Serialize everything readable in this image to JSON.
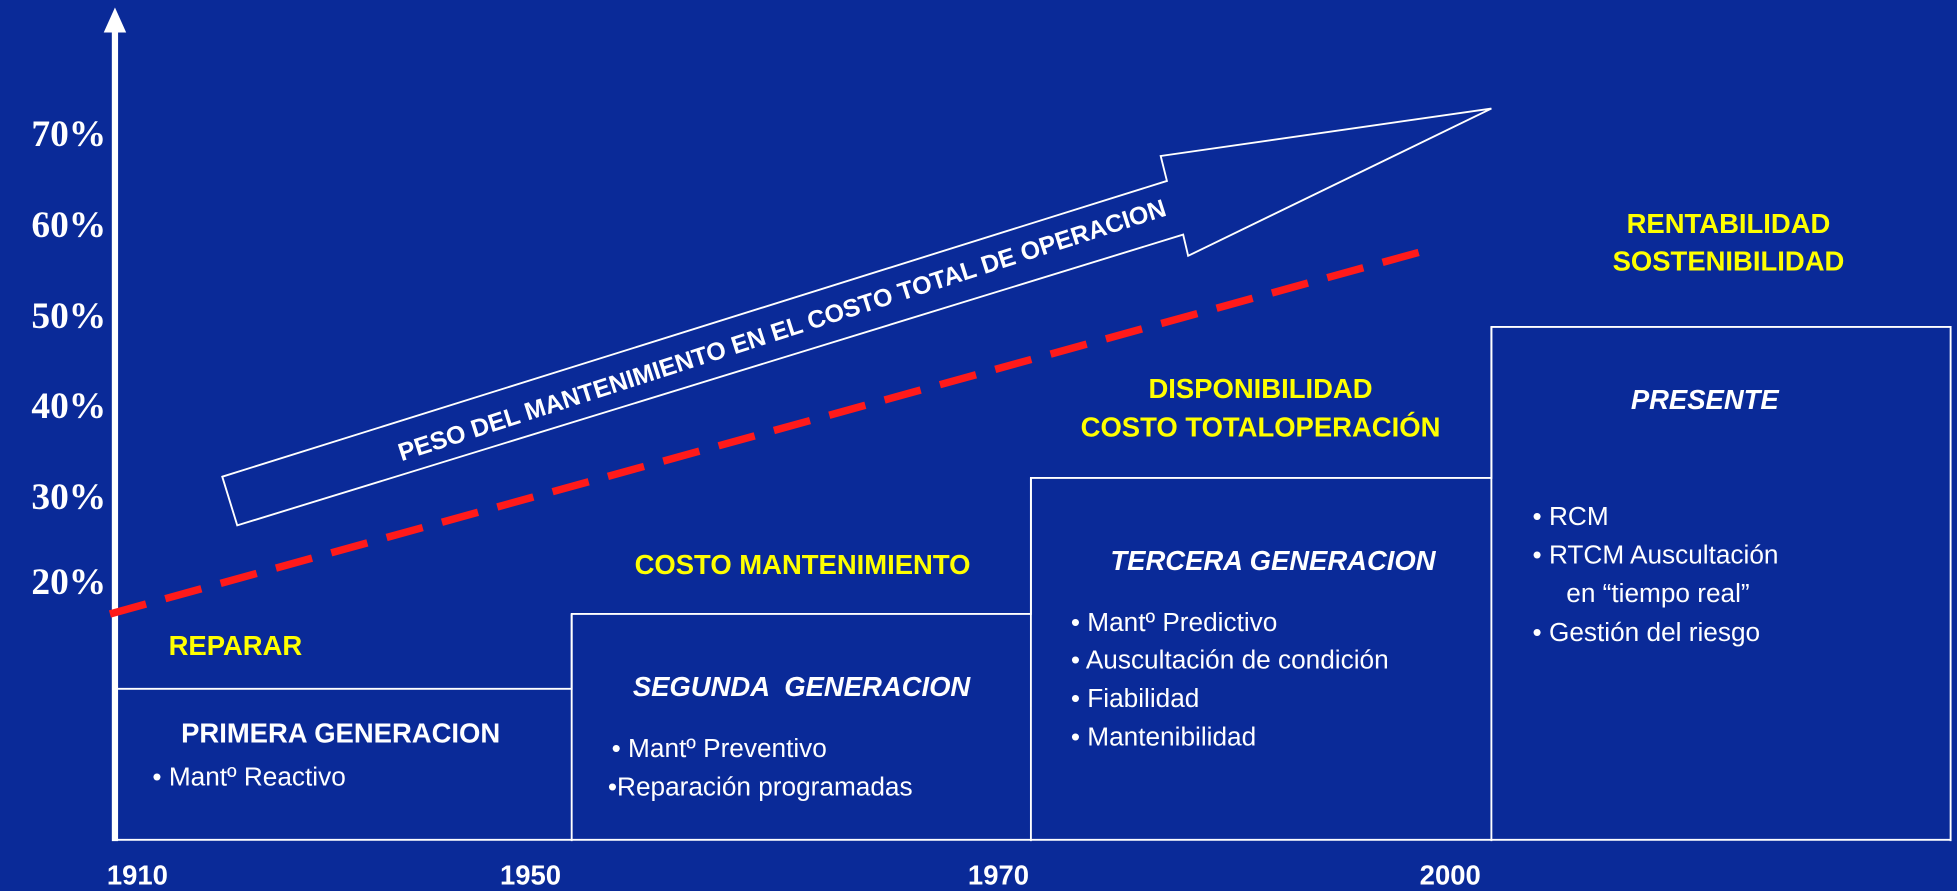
{
  "y_axis": {
    "labels": [
      "70%",
      "60%",
      "50%",
      "40%",
      "30%",
      "20%"
    ]
  },
  "x_axis": {
    "labels": [
      "1910",
      "1950",
      "1970",
      "2000"
    ]
  },
  "arrow_label": "PESO DEL MANTENIMIENTO EN EL COSTO TOTAL DE OPERACION",
  "stages": [
    {
      "goal": [
        "REPARAR"
      ],
      "title": "PRIMERA GENERACION",
      "items": [
        "• Mantº Reactivo"
      ]
    },
    {
      "goal": [
        "COSTO MANTENIMIENTO"
      ],
      "title": "SEGUNDA  GENERACION",
      "items": [
        "• Mantº Preventivo",
        "•Reparación programadas"
      ]
    },
    {
      "goal": [
        "DISPONIBILIDAD",
        "COSTO TOTALOPERACIÓN"
      ],
      "title": "TERCERA GENERACION",
      "items": [
        "• Mantº Predictivo",
        "• Auscultación de condición",
        "• Fiabilidad",
        "• Mantenibilidad"
      ]
    },
    {
      "goal": [
        "RENTABILIDAD",
        "SOSTENIBILIDAD"
      ],
      "title": "PRESENTE",
      "items": [
        "• RCM",
        "• RTCM Auscultación",
        "en “tiempo real”",
        "• Gestión del riesgo"
      ]
    }
  ]
}
